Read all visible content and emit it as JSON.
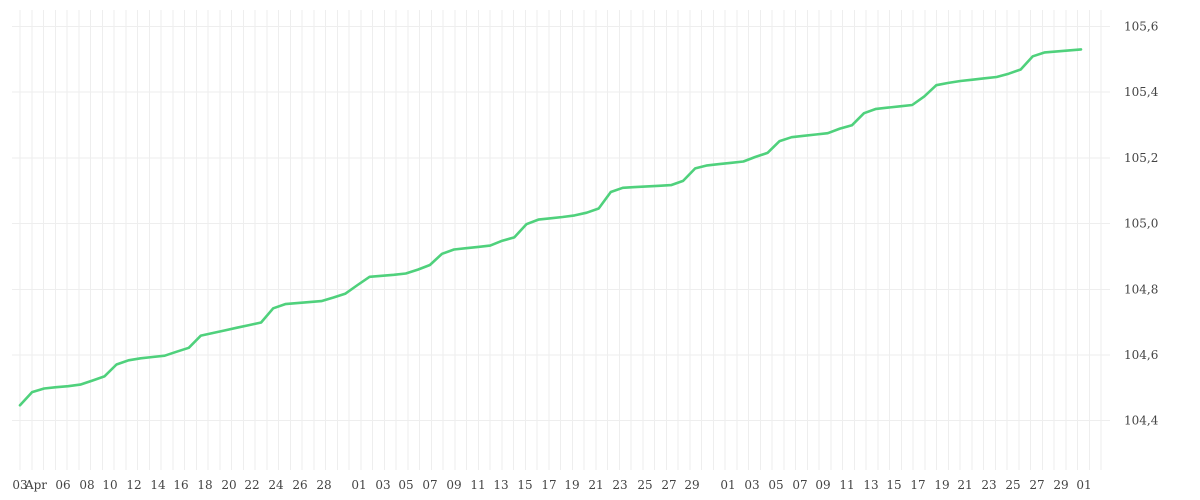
{
  "chart_data": {
    "type": "line",
    "title": "",
    "xlabel": "",
    "ylabel": "",
    "x_tick_labels": [
      "03",
      "Apr",
      "06",
      "08",
      "10",
      "12",
      "14",
      "16",
      "18",
      "20",
      "22",
      "24",
      "26",
      "28",
      "01",
      "03",
      "05",
      "07",
      "09",
      "11",
      "13",
      "15",
      "17",
      "19",
      "21",
      "23",
      "25",
      "27",
      "29",
      "01",
      "03",
      "05",
      "07",
      "09",
      "11",
      "13",
      "15",
      "17",
      "19",
      "21",
      "23",
      "25",
      "27",
      "29",
      "01"
    ],
    "y_tick_labels": [
      "104,4",
      "104,6",
      "104,8",
      "105,0",
      "105,2",
      "105,4",
      "105,6"
    ],
    "ylim": [
      104.25,
      105.65
    ],
    "y_axis_side": "right",
    "grid": true,
    "legend": "none",
    "colors": {
      "line": "#4fd17c",
      "grid": "#eeeeee",
      "text": "#444444"
    },
    "series": [
      {
        "values": [
          104.447,
          104.487,
          104.498,
          104.502,
          104.505,
          104.51,
          104.522,
          104.535,
          104.571,
          104.584,
          104.59,
          104.594,
          104.598,
          104.61,
          104.622,
          104.659,
          104.667,
          104.675,
          104.683,
          104.691,
          104.699,
          104.742,
          104.755,
          104.758,
          104.761,
          104.764,
          104.775,
          104.787,
          104.813,
          104.838,
          104.841,
          104.844,
          104.848,
          104.86,
          104.874,
          104.908,
          104.921,
          104.925,
          104.929,
          104.933,
          104.948,
          104.958,
          104.998,
          105.012,
          105.016,
          105.02,
          105.025,
          105.033,
          105.046,
          105.096,
          105.109,
          105.111,
          105.113,
          105.115,
          105.117,
          105.13,
          105.168,
          105.177,
          105.181,
          105.185,
          105.189,
          105.203,
          105.215,
          105.251,
          105.263,
          105.267,
          105.271,
          105.275,
          105.289,
          105.299,
          105.336,
          105.349,
          105.353,
          105.357,
          105.361,
          105.387,
          105.421,
          105.428,
          105.434,
          105.438,
          105.442,
          105.446,
          105.456,
          105.469,
          105.509,
          105.521,
          105.524,
          105.527,
          105.53
        ]
      }
    ]
  }
}
